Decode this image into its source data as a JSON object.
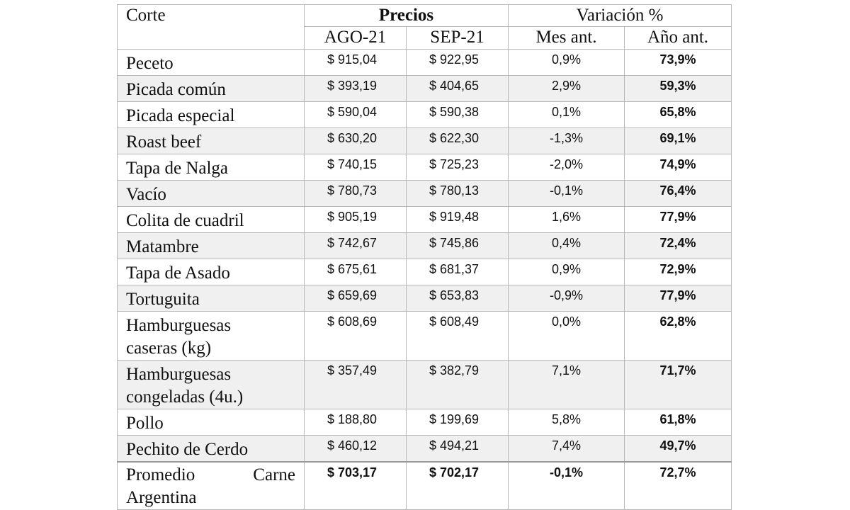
{
  "headers": {
    "corte": "Corte",
    "precios": "Precios",
    "variacion": "Variación %",
    "ago": "AGO-21",
    "sep": "SEP-21",
    "mes_ant": "Mes ant.",
    "anio_ant": "Año ant."
  },
  "rows": [
    {
      "corte": "Peceto",
      "ago": "$ 915,04",
      "sep": "$ 922,95",
      "mes": "0,9%",
      "anio": "73,9%"
    },
    {
      "corte": "Picada común",
      "ago": "$ 393,19",
      "sep": "$ 404,65",
      "mes": "2,9%",
      "anio": "59,3%"
    },
    {
      "corte": "Picada especial",
      "ago": "$ 590,04",
      "sep": "$ 590,38",
      "mes": "0,1%",
      "anio": "65,8%"
    },
    {
      "corte": "Roast beef",
      "ago": "$ 630,20",
      "sep": "$ 622,30",
      "mes": "-1,3%",
      "anio": "69,1%"
    },
    {
      "corte": "Tapa de Nalga",
      "ago": "$ 740,15",
      "sep": "$ 725,23",
      "mes": "-2,0%",
      "anio": "74,9%"
    },
    {
      "corte": "Vacío",
      "ago": "$ 780,73",
      "sep": "$ 780,13",
      "mes": "-0,1%",
      "anio": "76,4%"
    },
    {
      "corte": "Colita de cuadril",
      "ago": "$ 905,19",
      "sep": "$ 919,48",
      "mes": "1,6%",
      "anio": "77,9%"
    },
    {
      "corte": "Matambre",
      "ago": "$ 742,67",
      "sep": "$ 745,86",
      "mes": "0,4%",
      "anio": "72,4%"
    },
    {
      "corte": "Tapa de Asado",
      "ago": "$ 675,61",
      "sep": "$ 681,37",
      "mes": "0,9%",
      "anio": "72,9%"
    },
    {
      "corte": "Tortuguita",
      "ago": "$ 659,69",
      "sep": "$ 653,83",
      "mes": "-0,9%",
      "anio": "77,9%"
    },
    {
      "corte": "Hamburguesas caseras (kg)",
      "ago": "$ 608,69",
      "sep": "$ 608,49",
      "mes": "0,0%",
      "anio": "62,8%"
    },
    {
      "corte": "Hamburguesas congeladas (4u.)",
      "ago": "$ 357,49",
      "sep": "$ 382,79",
      "mes": "7,1%",
      "anio": "71,7%"
    },
    {
      "corte": "Pollo",
      "ago": "$ 188,80",
      "sep": "$ 199,69",
      "mes": "5,8%",
      "anio": "61,8%"
    },
    {
      "corte": "Pechito de Cerdo",
      "ago": "$ 460,12",
      "sep": "$ 494,21",
      "mes": "7,4%",
      "anio": "49,7%"
    }
  ],
  "promedio": {
    "line1_a": "Promedio",
    "line1_b": "Carne",
    "line2": "Argentina",
    "ago": "$ 703,17",
    "sep": "$ 702,17",
    "mes": "-0,1%",
    "anio": "72,7%"
  }
}
